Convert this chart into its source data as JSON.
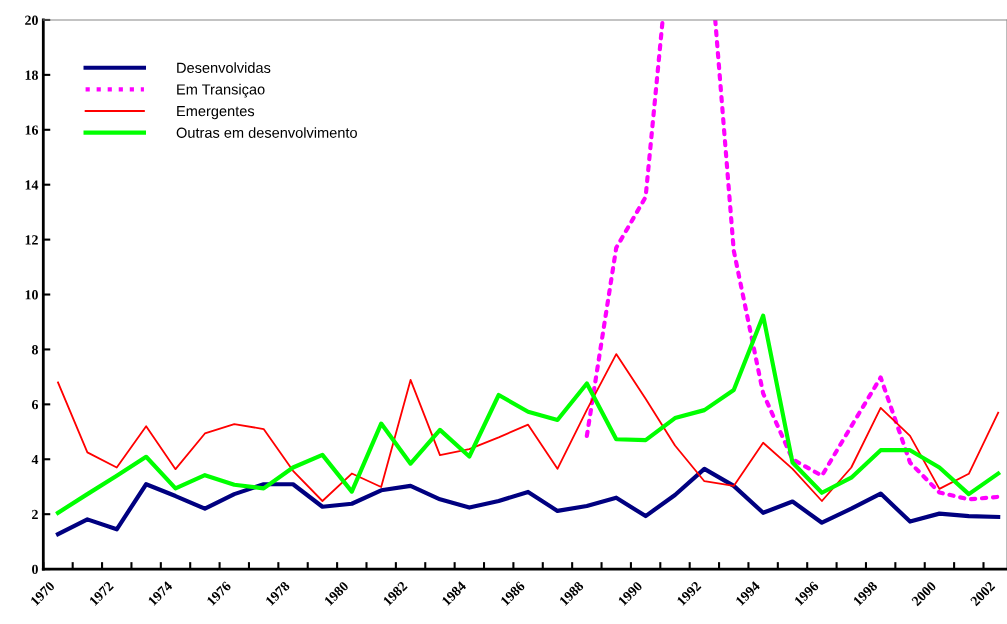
{
  "chart_data": {
    "type": "line",
    "x": [
      1970.5,
      1971.5,
      1972.5,
      1973.5,
      1974.5,
      1975.5,
      1976.5,
      1977.5,
      1978.5,
      1979.5,
      1980.5,
      1981.5,
      1982.5,
      1983.5,
      1984.5,
      1985.5,
      1986.5,
      1987.5,
      1988.5,
      1989.5,
      1990.5,
      1991.5,
      1992.5,
      1993.5,
      1994.5,
      1995.5,
      1996.5,
      1997.5,
      1998.5,
      1999.5,
      2000.5,
      2001.5,
      2002.5
    ],
    "series": [
      {
        "name": "Desenvolvidas",
        "color": "#000080",
        "values": [
          1.27,
          1.81,
          1.45,
          3.09,
          2.66,
          2.2,
          2.73,
          3.09,
          3.09,
          2.27,
          2.38,
          2.87,
          3.03,
          2.54,
          2.24,
          2.48,
          2.81,
          2.12,
          2.3,
          2.6,
          1.93,
          2.7,
          3.65,
          3.03,
          2.05,
          2.46,
          1.69,
          2.2,
          2.75,
          1.73,
          2.02,
          1.93,
          1.9
        ]
      },
      {
        "name": "Em Transiçao",
        "color": "#ff00ff",
        "line_style": "dotted",
        "x": [
          1988.5,
          1989.5,
          1990.5,
          1991.08,
          1992.0,
          1992.87,
          1993.5,
          1994.5,
          1995.5,
          1996.5,
          1997.5,
          1998.5,
          1999.5,
          2000.5,
          2001.5,
          2002.5
        ],
        "values": [
          4.85,
          11.7,
          13.55,
          20,
          null,
          20,
          11.6,
          6.4,
          4.0,
          3.4,
          5.2,
          6.98,
          3.88,
          2.79,
          2.54,
          2.63
        ]
      },
      {
        "name": "Emergentes",
        "color": "#ff0000",
        "values": [
          6.8,
          4.25,
          3.7,
          5.2,
          3.64,
          4.94,
          5.28,
          5.1,
          3.58,
          2.48,
          3.48,
          2.99,
          6.89,
          4.15,
          4.37,
          4.8,
          5.26,
          3.65,
          5.8,
          7.83,
          6.2,
          4.5,
          3.2,
          3.03,
          4.6,
          3.65,
          2.48,
          3.7,
          5.87,
          4.85,
          2.92,
          3.47,
          5.7
        ]
      },
      {
        "name": "Outras em desenvolvimento",
        "color": "#00ff00",
        "values": [
          2.05,
          2.73,
          3.4,
          4.09,
          2.94,
          3.42,
          3.07,
          2.94,
          3.7,
          4.16,
          2.82,
          5.3,
          3.84,
          5.07,
          4.1,
          6.34,
          5.73,
          5.43,
          6.76,
          4.73,
          4.7,
          5.5,
          5.79,
          6.52,
          9.23,
          3.88,
          2.78,
          3.33,
          4.33,
          4.33,
          3.7,
          2.73,
          3.48
        ]
      }
    ],
    "xlim": [
      1970,
      2002.8
    ],
    "xticks": [
      1970,
      {
        "value": 1971,
        "label": null
      },
      1972,
      {
        "value": 1973,
        "label": null
      },
      1974,
      {
        "value": 1975,
        "label": null
      },
      1976,
      {
        "value": 1977,
        "label": null
      },
      1978,
      {
        "value": 1979,
        "label": null
      },
      1980,
      {
        "value": 1981,
        "label": null
      },
      1982,
      {
        "value": 1983,
        "label": null
      },
      1984,
      {
        "value": 1985,
        "label": null
      },
      1986,
      {
        "value": 1987,
        "label": null
      },
      1988,
      {
        "value": 1989,
        "label": null
      },
      1990,
      {
        "value": 1991,
        "label": null
      },
      1992,
      {
        "value": 1993,
        "label": null
      },
      1994,
      {
        "value": 1995,
        "label": null
      },
      1996,
      {
        "value": 1997,
        "label": null
      },
      1998,
      {
        "value": 1999,
        "label": null
      },
      2000,
      {
        "value": 2001,
        "label": null
      },
      2002
    ],
    "ylim": [
      0,
      20
    ],
    "yticks": [
      0,
      2,
      4,
      6,
      8,
      10,
      12,
      14,
      16,
      18,
      20
    ],
    "grid": false,
    "legend": "top left"
  }
}
